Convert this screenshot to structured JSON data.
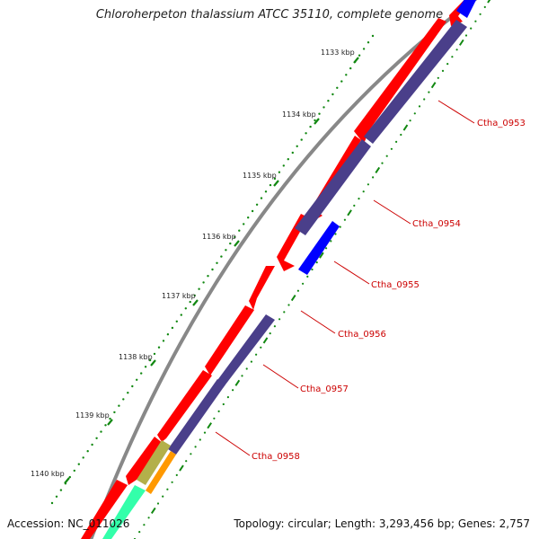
{
  "header": {
    "title": "Chloroherpeton thalassium ATCC 35110, complete genome"
  },
  "footer": {
    "accession": "Accession: NC_011026",
    "summary": "Topology: circular; Length: 3,293,456 bp; Genes: 2,757"
  },
  "ticks": [
    {
      "label": "1133 kbp",
      "kbp": 1133
    },
    {
      "label": "1134 kbp",
      "kbp": 1134
    },
    {
      "label": "1135 kbp",
      "kbp": 1135
    },
    {
      "label": "1136 kbp",
      "kbp": 1136
    },
    {
      "label": "1137 kbp",
      "kbp": 1137
    },
    {
      "label": "1138 kbp",
      "kbp": 1138
    },
    {
      "label": "1139 kbp",
      "kbp": 1139
    },
    {
      "label": "1140 kbp",
      "kbp": 1140
    }
  ],
  "gene_labels": [
    {
      "name": "Ctha_0953"
    },
    {
      "name": "Ctha_0954"
    },
    {
      "name": "Ctha_0955"
    },
    {
      "name": "Ctha_0956"
    },
    {
      "name": "Ctha_0957"
    },
    {
      "name": "Ctha_0958"
    }
  ],
  "colors": {
    "backbone": "#888888",
    "forward_cds": "#ff0000",
    "reverse_cds": "#4a3f8a",
    "highlight_cds": "#0000ff",
    "olive_feature": "#b3b04a",
    "orange_feature": "#ff9900",
    "teal_feature": "#33ffaa",
    "tick_mark": "#118811",
    "label_text": "#cc0000"
  }
}
